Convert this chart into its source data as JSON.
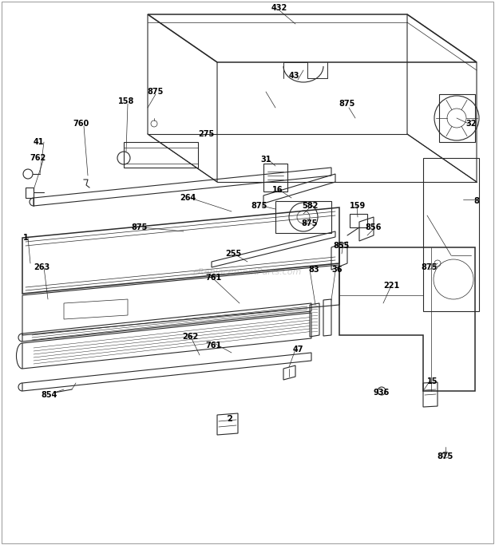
{
  "bg_color": "#ffffff",
  "fig_width": 6.2,
  "fig_height": 6.83,
  "watermark": "eReplacementParts.com",
  "line_color": "#2a2a2a",
  "label_color": "#000000",
  "label_fontsize": 7.0
}
